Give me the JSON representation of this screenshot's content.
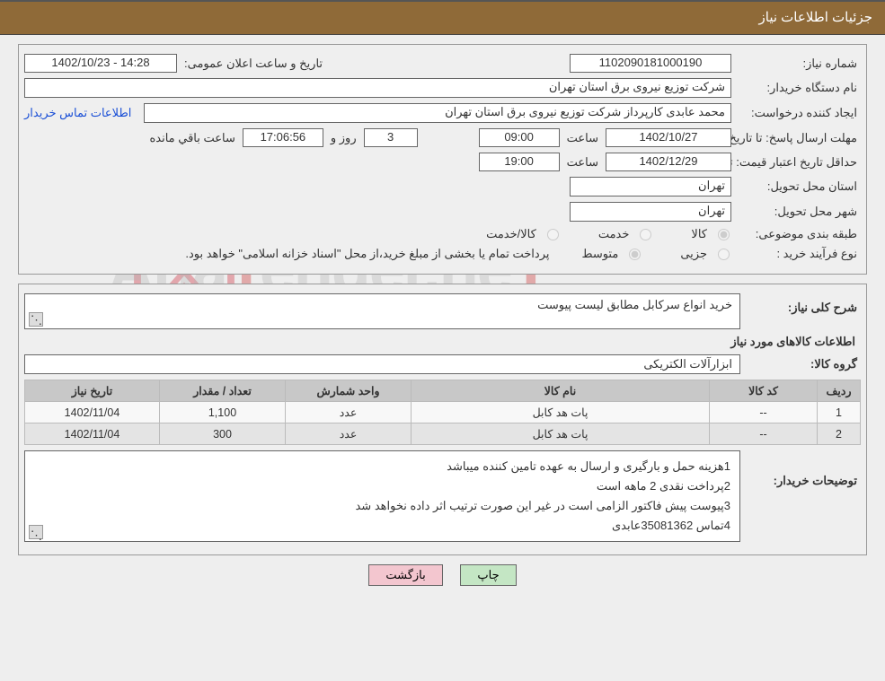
{
  "header": {
    "title": "جزئیات اطلاعات نیاز"
  },
  "fields": {
    "need_no_lbl": "شماره نیاز:",
    "need_no": "1102090181000190",
    "announce_lbl": "تاریخ و ساعت اعلان عمومی:",
    "announce_val": "14:28 - 1402/10/23",
    "buyer_org_lbl": "نام دستگاه خریدار:",
    "buyer_org": "شرکت توزیع نیروی برق استان تهران",
    "requester_lbl": "ایجاد کننده درخواست:",
    "requester": "محمد عابدی کارپرداز شرکت توزیع نیروی برق استان تهران",
    "contact_link": "اطلاعات تماس خریدار",
    "deadline_lbl": "مهلت ارسال پاسخ: تا تاریخ:",
    "deadline_date": "1402/10/27",
    "time_lbl": "ساعت",
    "deadline_time": "09:00",
    "days": "3",
    "days_lbl": "روز و",
    "remain_time": "17:06:56",
    "remain_lbl": "ساعت باقي مانده",
    "minvalid_lbl": "حداقل تاریخ اعتبار قیمت: تا تاریخ:",
    "minvalid_date": "1402/12/29",
    "minvalid_time": "19:00",
    "province_lbl": "استان محل تحویل:",
    "province": "تهران",
    "city_lbl": "شهر محل تحویل:",
    "city": "تهران",
    "class_lbl": "طبقه بندی موضوعی:",
    "class_goods": "کالا",
    "class_service": "خدمت",
    "class_both": "کالا/خدمت",
    "proc_type_lbl": "نوع فرآیند خرید :",
    "proc_minor": "جزیی",
    "proc_medium": "متوسط",
    "payment_note": "پرداخت تمام یا بخشی از مبلغ خرید،از محل \"اسناد خزانه اسلامی\" خواهد بود.",
    "summary_lbl": "شرح کلی نیاز:",
    "summary": "خرید انواع سرکابل مطابق لیست پیوست",
    "goods_info": "اطلاعات کالاهای مورد نیاز",
    "group_lbl": "گروه کالا:",
    "group": "ابزارآلات الکتریکی",
    "buyer_notes_lbl": "توضیحات خریدار:",
    "notes": [
      "1هزینه حمل و بارگیری و ارسال به عهده تامین کننده میباشد",
      "2پرداخت نقدی 2 ماهه است",
      "3پیوست پیش فاکتور الزامی است در غیر این صورت ترتیب اثر داده نخواهد شد",
      "4تماس 35081362عابدی"
    ]
  },
  "table": {
    "columns": [
      "ردیف",
      "کد کالا",
      "نام کالا",
      "واحد شمارش",
      "تعداد / مقدار",
      "تاریخ نیاز"
    ],
    "col_widths": [
      "48px",
      "120px",
      "auto",
      "140px",
      "140px",
      "150px"
    ],
    "header_bg": "#c8c8c8",
    "rows": [
      [
        "1",
        "--",
        "پات هد کابل",
        "عدد",
        "1,100",
        "1402/11/04"
      ],
      [
        "2",
        "--",
        "پات هد کابل",
        "عدد",
        "300",
        "1402/11/04"
      ]
    ]
  },
  "buttons": {
    "print": "چاپ",
    "back": "بازگشت"
  },
  "colors": {
    "header_brown": "#8f6a38",
    "panel_border": "#999999",
    "box_border": "#666666",
    "link": "#1a4fd6",
    "btn_green": "#c4e6c4",
    "btn_red": "#f3c6cf"
  },
  "watermark": {
    "text_a": "Aria",
    "text_t": "T",
    "text_rest": "ender.ne",
    "text_last": "T"
  }
}
